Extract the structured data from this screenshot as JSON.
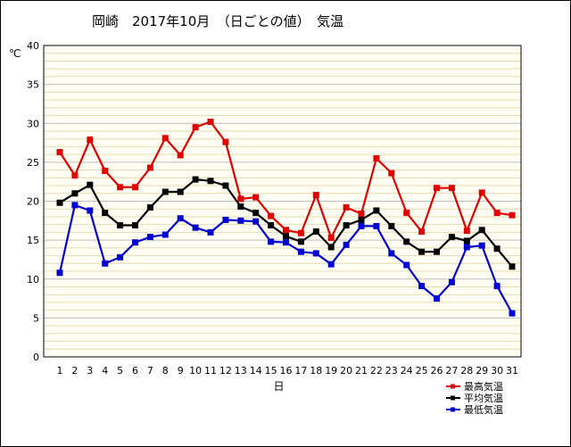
{
  "chart_data": {
    "type": "line",
    "title": "岡崎　2017年10月　（日ごとの値）　気温",
    "xlabel": "日",
    "ylabel": "℃",
    "ylim": [
      0,
      40
    ],
    "yticks": [
      0,
      5,
      10,
      15,
      20,
      25,
      30,
      35,
      40
    ],
    "x": [
      1,
      2,
      3,
      4,
      5,
      6,
      7,
      8,
      9,
      10,
      11,
      12,
      13,
      14,
      15,
      16,
      17,
      18,
      19,
      20,
      21,
      22,
      23,
      24,
      25,
      26,
      27,
      28,
      29,
      30,
      31
    ],
    "grid": true,
    "legend_position": "bottom-right",
    "series": [
      {
        "name": "最高気温",
        "color": "#e00000",
        "values": [
          26.3,
          23.3,
          27.9,
          23.9,
          21.8,
          21.8,
          24.3,
          28.1,
          25.9,
          29.5,
          30.2,
          27.6,
          20.3,
          20.5,
          18.1,
          16.3,
          15.9,
          20.8,
          15.3,
          19.2,
          18.4,
          25.5,
          23.6,
          18.5,
          16.1,
          21.7,
          21.7,
          16.2,
          21.1,
          18.5,
          18.2
        ]
      },
      {
        "name": "平均気温",
        "color": "#000000",
        "values": [
          19.8,
          21.0,
          22.1,
          18.5,
          16.9,
          16.9,
          19.2,
          21.2,
          21.2,
          22.8,
          22.6,
          22.0,
          19.3,
          18.5,
          16.9,
          15.5,
          14.8,
          16.1,
          14.1,
          16.9,
          17.6,
          18.8,
          16.8,
          14.8,
          13.5,
          13.5,
          15.4,
          14.9,
          16.3,
          13.9,
          11.6
        ]
      },
      {
        "name": "最低気温",
        "color": "#0000d0",
        "values": [
          10.8,
          19.5,
          18.8,
          12.0,
          12.8,
          14.7,
          15.4,
          15.7,
          17.8,
          16.6,
          16.0,
          17.6,
          17.5,
          17.4,
          14.8,
          14.7,
          13.5,
          13.3,
          11.9,
          14.4,
          16.8,
          16.8,
          13.3,
          11.8,
          9.1,
          7.5,
          9.6,
          14.1,
          14.3,
          9.1,
          5.6
        ]
      }
    ]
  }
}
